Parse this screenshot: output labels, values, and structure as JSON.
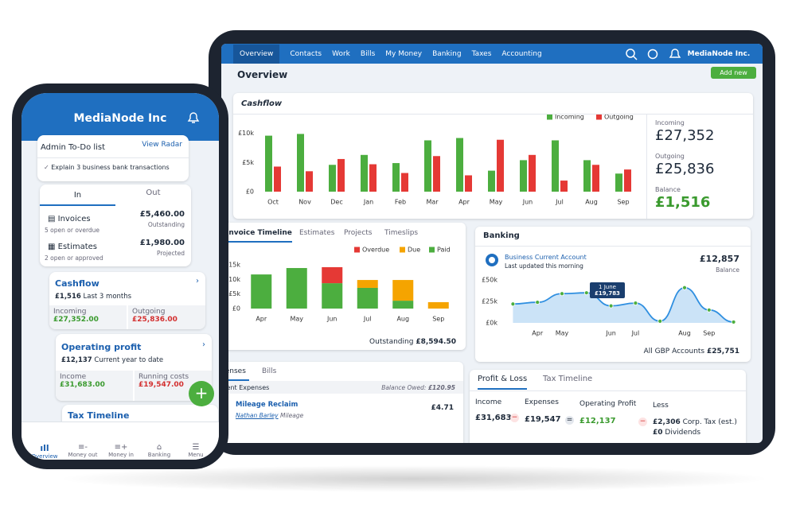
{
  "tablet": {
    "nav": {
      "items": [
        "Overview",
        "Contacts",
        "Work",
        "Bills",
        "My Money",
        "Banking",
        "Taxes",
        "Accounting"
      ],
      "account": "MediaNode Inc."
    },
    "page_title": "Overview",
    "add_button": "Add new",
    "cashflow_summary": [
      {
        "label": "Incoming",
        "value": "£27,352"
      },
      {
        "label": "Outgoing",
        "value": "£25,836"
      },
      {
        "label": "Balance",
        "value": "£1,516"
      }
    ],
    "invoice_timeline": {
      "tabs": [
        "Invoice Timeline",
        "Estimates",
        "Projects",
        "Timeslips"
      ],
      "outstanding_label": "Outstanding",
      "outstanding_value": "£8,594.50"
    },
    "banking": {
      "account": "Business Current Account",
      "updated": "Last updated this morning",
      "balance": "£12,857",
      "balance_label": "Balance",
      "tooltip_label": "1 June",
      "tooltip_value": "£19,783",
      "total_label": "All GBP Accounts",
      "total": "£25,751"
    },
    "expenses": {
      "tabs": [
        "Expenses",
        "Bills"
      ],
      "subtitle": "Recent Expenses",
      "balance_label": "Balance Owed:",
      "balance": "£120.95",
      "item_title": "Mileage Reclaim",
      "item_person": "Nathan Barley",
      "item_category": "Mileage",
      "item_amount": "£4.71"
    },
    "profit_loss": {
      "tabs": [
        "Profit & Loss",
        "Tax Timeline"
      ],
      "headers": [
        "Income",
        "Expenses",
        "Operating Profit",
        "Less"
      ],
      "values": [
        "£31,683",
        "£19,547",
        "£12,137"
      ],
      "less": [
        {
          "amount": "£2,306",
          "label": "Corp. Tax (est.)"
        },
        {
          "amount": "£0",
          "label": "Dividends"
        }
      ]
    }
  },
  "chart_data": [
    {
      "type": "bar",
      "title": "Cashflow",
      "legend": "top-right",
      "categories": [
        "Oct",
        "Nov",
        "Dec",
        "Jan",
        "Feb",
        "Mar",
        "Apr",
        "May",
        "Jun",
        "Jul",
        "Aug",
        "Sep"
      ],
      "series": [
        {
          "name": "Incoming",
          "color": "#4cae3f",
          "values": [
            9600,
            9900,
            4600,
            6300,
            4900,
            8800,
            9200,
            3600,
            5400,
            8800,
            5400,
            3100
          ]
        },
        {
          "name": "Outgoing",
          "color": "#e53935",
          "values": [
            4300,
            3500,
            5600,
            4700,
            3200,
            6100,
            2800,
            8900,
            6300,
            1900,
            4600,
            3800
          ]
        }
      ],
      "ylim": [
        0,
        10500
      ],
      "yticks": [
        {
          "value": 0,
          "label": "£0"
        },
        {
          "value": 5000,
          "label": "£5k"
        },
        {
          "value": 10000,
          "label": "£10k"
        }
      ]
    },
    {
      "type": "bar",
      "stacked": true,
      "legend": "top-right",
      "categories": [
        "Apr",
        "May",
        "Jun",
        "Jul",
        "Aug",
        "Sep"
      ],
      "series": [
        {
          "name": "Overdue",
          "color": "#e53935",
          "values": [
            0,
            0,
            5500,
            0,
            0,
            0
          ]
        },
        {
          "name": "Due",
          "color": "#f5a400",
          "values": [
            0,
            0,
            0,
            2700,
            7100,
            2200
          ]
        },
        {
          "name": "Paid",
          "color": "#4cae3f",
          "values": [
            11700,
            13900,
            8700,
            7100,
            2700,
            0
          ]
        }
      ],
      "ylim": [
        0,
        15000
      ],
      "yticks": [
        {
          "value": 0,
          "label": "£0"
        },
        {
          "value": 5000,
          "label": "£5k"
        },
        {
          "value": 10000,
          "label": "£10k"
        },
        {
          "value": 15000,
          "label": "£15k"
        }
      ]
    },
    {
      "type": "line",
      "title": "Banking",
      "color": "#2f8fe0",
      "categories": [
        null,
        "Apr",
        "May",
        null,
        "Jun",
        "Jul",
        null,
        "Aug",
        "Sep",
        null
      ],
      "values": [
        22000,
        24000,
        34000,
        35000,
        19783,
        23000,
        2000,
        41000,
        15000,
        1000
      ],
      "ylim": [
        0,
        50000
      ],
      "yticks": [
        {
          "value": 0,
          "label": "£0k"
        },
        {
          "value": 25000,
          "label": "£25k"
        },
        {
          "value": 50000,
          "label": "£50k"
        }
      ]
    }
  ],
  "phone": {
    "title": "MediaNode Inc",
    "todo_title": "Admin To-Do list",
    "todo_link": "View Radar",
    "todo_item": "Explain 3 business bank transactions",
    "tabs": [
      "In",
      "Out"
    ],
    "rows": [
      {
        "label": "Invoices",
        "sub": "5 open or overdue",
        "amount": "£5,460.00",
        "status": "Outstanding"
      },
      {
        "label": "Estimates",
        "sub": "2 open or approved",
        "amount": "£1,980.00",
        "status": "Projected"
      }
    ],
    "cards": [
      {
        "title": "Cashflow",
        "amount": "£1,516",
        "period": "Last 3 months",
        "cells": [
          {
            "label": "Incoming",
            "value": "£27,352.00"
          },
          {
            "label": "Outgoing",
            "value": "£25,836.00"
          }
        ]
      },
      {
        "title": "Operating profit",
        "amount": "£12,137",
        "period": "Current year to date",
        "cells": [
          {
            "label": "Income",
            "value": "£31,683.00"
          },
          {
            "label": "Running costs",
            "value": "£19,547.00"
          }
        ]
      }
    ],
    "tax_timeline": "Tax Timeline",
    "nav": [
      "Overview",
      "Money out",
      "Money in",
      "Banking",
      "Menu"
    ]
  }
}
